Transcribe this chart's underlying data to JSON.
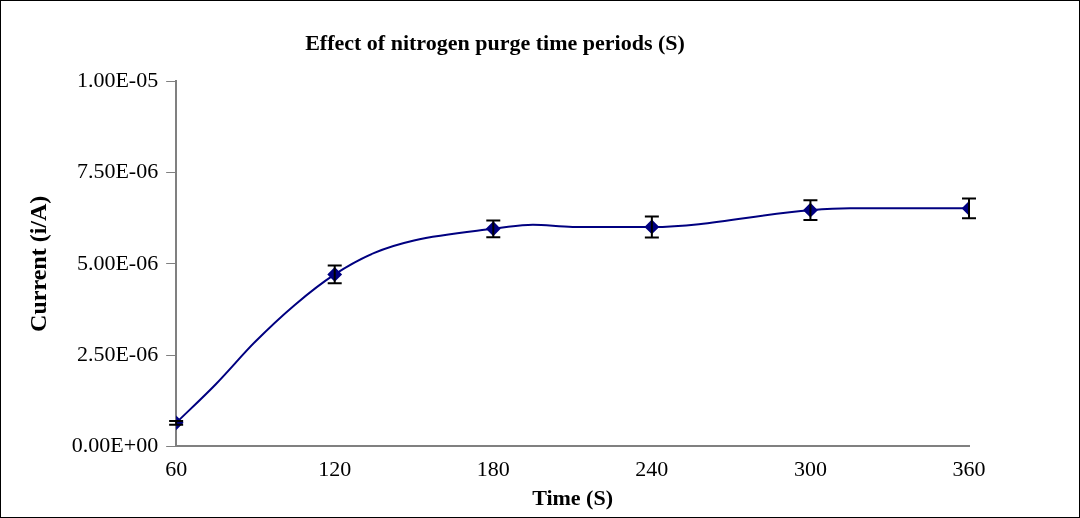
{
  "chart_data": {
    "type": "line",
    "title": "Effect of nitrogen purge time periods (S)",
    "xlabel": "Time (S)",
    "ylabel": "Current (i/A)",
    "xlim": [
      60,
      360
    ],
    "xticks": [
      60,
      120,
      180,
      240,
      300,
      360
    ],
    "ylim": [
      0,
      1e-05
    ],
    "yticks": [
      {
        "value": 0,
        "label": "0.00E+00"
      },
      {
        "value": 2.5e-06,
        "label": "2.50E-06"
      },
      {
        "value": 5e-06,
        "label": "5.00E-06"
      },
      {
        "value": 7.5e-06,
        "label": "7.50E-06"
      },
      {
        "value": 1e-05,
        "label": "1.00E-05"
      }
    ],
    "grid": false,
    "legend": false,
    "series": [
      {
        "type": "line",
        "marker": "none",
        "color": "#000080",
        "x": [
          60,
          75,
          90,
          105,
          120,
          135,
          150,
          180,
          195,
          210,
          240,
          300,
          315,
          360
        ],
        "values": [
          6.4e-07,
          1.7e-06,
          2.87e-06,
          3.88e-06,
          4.71e-06,
          5.3e-06,
          5.64e-06,
          5.96e-06,
          6.07e-06,
          6.01e-06,
          6.01e-06,
          6.47e-06,
          6.52e-06,
          6.52e-06
        ]
      },
      {
        "type": "scatter",
        "marker": "diamond",
        "color": "#000080",
        "x": [
          60,
          120,
          180,
          240,
          300,
          360
        ],
        "values": [
          6.4e-07,
          4.71e-06,
          5.96e-06,
          6.01e-06,
          6.47e-06,
          6.52e-06
        ],
        "errors": [
          5e-08,
          2.4e-07,
          2.3e-07,
          2.9e-07,
          2.7e-07,
          2.7e-07
        ]
      }
    ]
  }
}
